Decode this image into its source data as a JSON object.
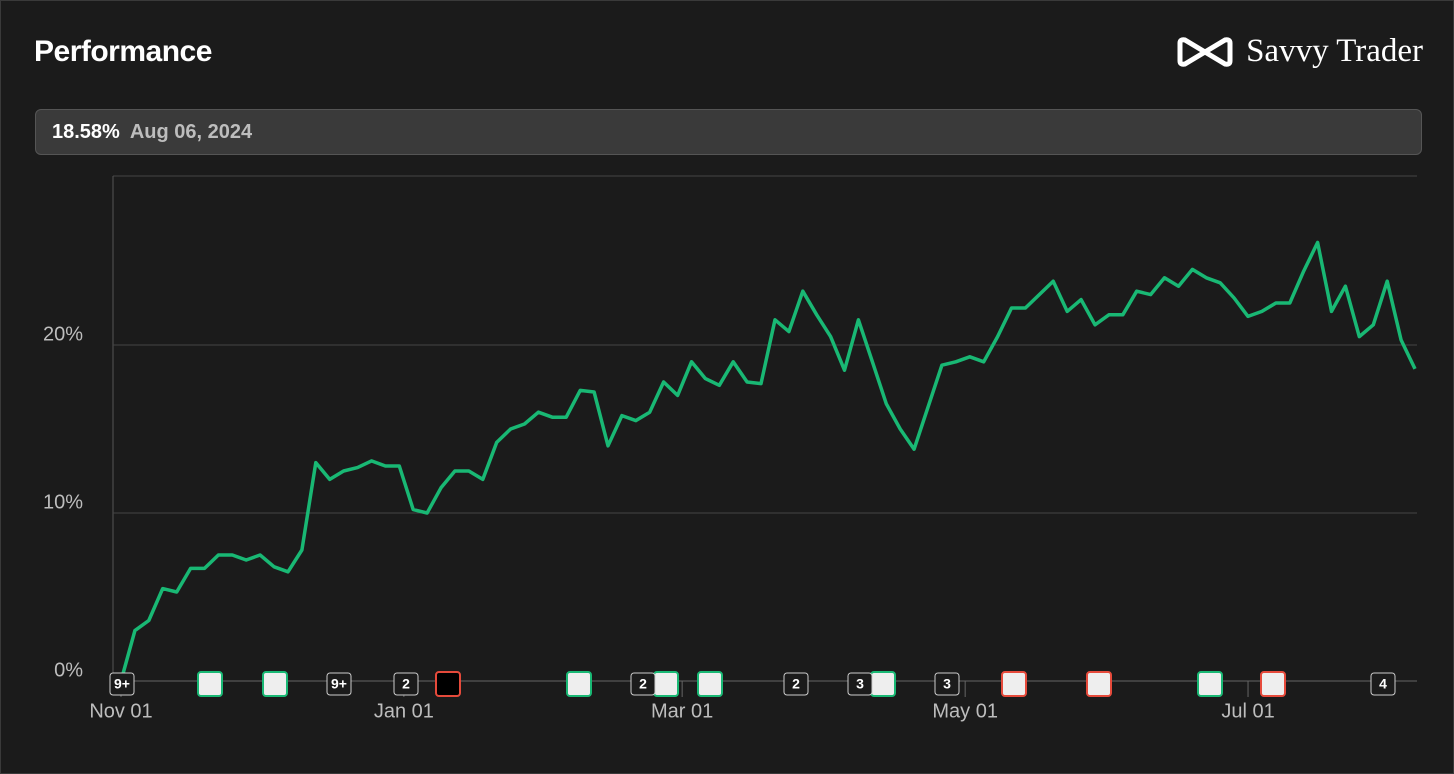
{
  "header": {
    "title": "Performance",
    "brand": "Savvy Trader"
  },
  "summary": {
    "value": "18.58%",
    "date": "Aug 06, 2024"
  },
  "event_badges": [
    "9+",
    "9+",
    "2",
    "2",
    "2",
    "3",
    "3",
    "4"
  ],
  "chart_data": {
    "type": "line",
    "color": "#19b874",
    "grid": true,
    "values": [
      0,
      3.0,
      3.6,
      5.5,
      5.3,
      6.7,
      6.7,
      7.5,
      7.5,
      7.2,
      7.5,
      6.8,
      6.5,
      7.8,
      13.0,
      12.0,
      12.5,
      12.7,
      13.1,
      12.8,
      12.8,
      10.2,
      10.0,
      11.5,
      12.5,
      12.5,
      12.0,
      14.2,
      15.0,
      15.3,
      16.0,
      15.7,
      15.7,
      17.3,
      17.2,
      14.0,
      15.8,
      15.5,
      16.0,
      17.8,
      17.0,
      19.0,
      18.0,
      17.6,
      19.0,
      17.8,
      17.7,
      21.5,
      20.8,
      23.2,
      21.8,
      20.5,
      18.5,
      21.5,
      19.0,
      16.5,
      15.0,
      13.8,
      16.3,
      18.8,
      19.0,
      19.3,
      19.0,
      20.5,
      22.2,
      22.2,
      23.0,
      23.8,
      22.0,
      22.7,
      21.2,
      21.8,
      21.8,
      23.2,
      23.0,
      24.0,
      23.5,
      24.5,
      24.0,
      23.7,
      22.8,
      21.7,
      22.0,
      22.5,
      22.5,
      24.4,
      26.1,
      22.0,
      23.5,
      20.5,
      21.2,
      23.8,
      20.3,
      18.58
    ],
    "xlim": [
      0,
      93
    ],
    "xticks": [
      {
        "value": 0,
        "label": "Nov 01"
      },
      {
        "value": 20.33,
        "label": "Jan 01"
      },
      {
        "value": 40.33,
        "label": "Mar 01"
      },
      {
        "value": 60.67,
        "label": "May 01"
      },
      {
        "value": 81,
        "label": "Jul 01"
      }
    ],
    "ylim": [
      0,
      30
    ],
    "yticks": [
      {
        "value": 0,
        "label": "0%"
      },
      {
        "value": 10,
        "label": "10%"
      },
      {
        "value": 20,
        "label": "20%"
      }
    ]
  }
}
